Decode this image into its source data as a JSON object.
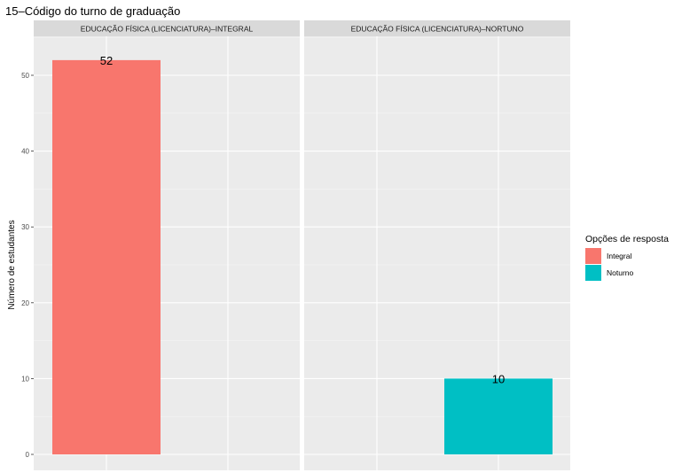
{
  "chart_data": {
    "type": "bar",
    "title": "15–Código do turno de graduação",
    "ylabel": "Número de estudantes",
    "xlabel": "",
    "ylim": [
      0,
      55
    ],
    "y_ticks": [
      0,
      10,
      20,
      30,
      40,
      50
    ],
    "grid": true,
    "legend": {
      "title": "Opções de resposta",
      "placement": "right",
      "entries": [
        {
          "label": "Integral",
          "color": "#F8766D"
        },
        {
          "label": "Noturno",
          "color": "#00BFC4"
        }
      ]
    },
    "categories": [
      "Integral",
      "Noturno"
    ],
    "panels": [
      {
        "strip": "EDUCAÇÃO FÍSICA (LICENCIATURA)–INTEGRAL",
        "bars": [
          {
            "category": "Integral",
            "value": 52,
            "label": "52",
            "color": "#F8766D"
          }
        ]
      },
      {
        "strip": "EDUCAÇÃO FÍSICA (LICENCIATURA)–NORTUNO",
        "bars": [
          {
            "category": "Noturno",
            "value": 10,
            "label": "10",
            "color": "#00BFC4"
          }
        ]
      }
    ]
  }
}
